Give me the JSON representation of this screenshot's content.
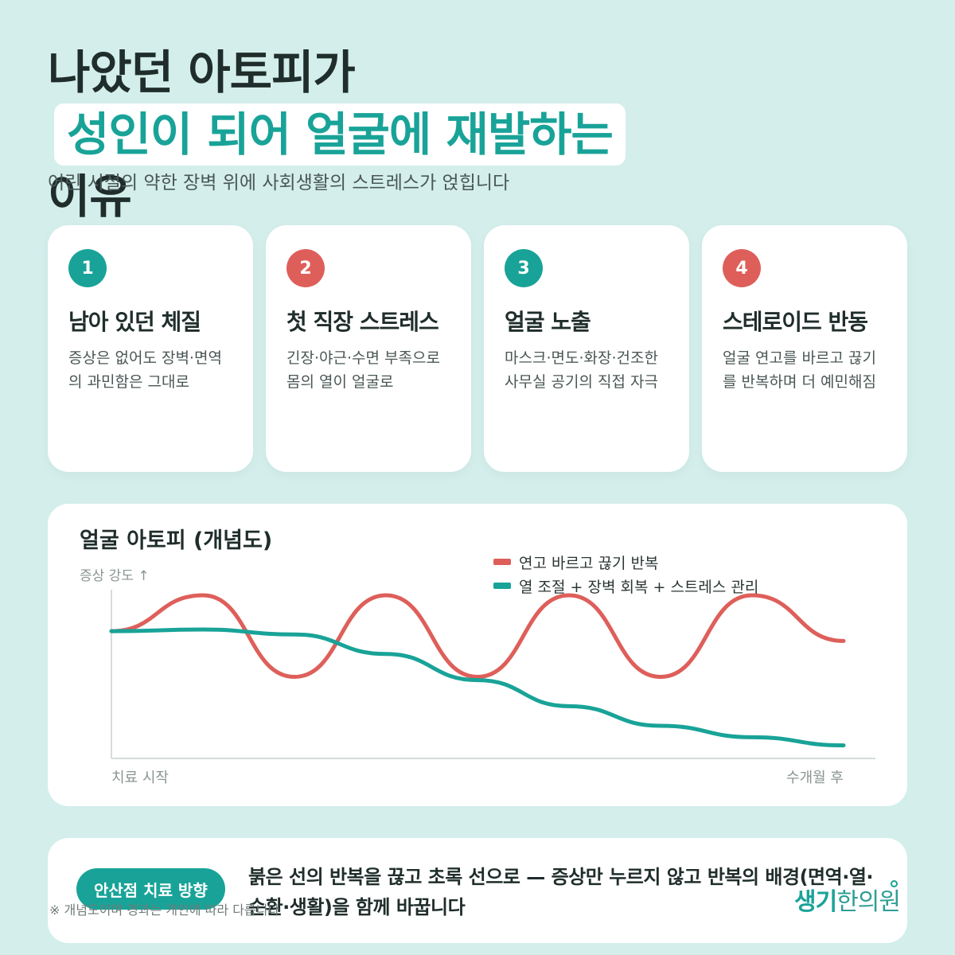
{
  "header": {
    "title_part1": "나았던 아토피가",
    "title_highlight": "성인이 되어 얼굴에 재발하는",
    "title_part2": "이유",
    "subtitle": "어린 시절의 약한 장벽 위에 사회생활의 스트레스가 얹힙니다"
  },
  "cards": [
    {
      "num": "1",
      "title": "남아 있던 체질",
      "body": "증상은 없어도 장벽·면역의 과민함은 그대로",
      "color": "#19a398"
    },
    {
      "num": "2",
      "title": "첫 직장 스트레스",
      "body": "긴장·야근·수면 부족으로 몸의 열이 얼굴로",
      "color": "#de5f5a"
    },
    {
      "num": "3",
      "title": "얼굴 노출",
      "body": "마스크·면도·화장·건조한 사무실 공기의 직접 자극",
      "color": "#19a398"
    },
    {
      "num": "4",
      "title": "스테로이드 반동",
      "body": "얼굴 연고를 바르고 끊기를 반복하며 더 예민해짐",
      "color": "#de5f5a"
    }
  ],
  "chart": {
    "title": "얼굴 아토피 (개념도)",
    "ylabel": "증상 강도 ↑",
    "x_start": "치료 시작",
    "x_end": "수개월 후"
  },
  "chart_data": {
    "type": "line",
    "title": "얼굴 아토피 (개념도)",
    "ylabel": "증상 강도 ↑",
    "x_tick_labels": [
      "치료 시작",
      "수개월 후"
    ],
    "legend_position": "top-right",
    "grid": false,
    "series": [
      {
        "name": "연고 바르고 끊기 반복",
        "color": "#de5f5a",
        "pattern": "oscillating",
        "y": [
          0.78,
          1.0,
          0.5,
          1.0,
          0.5,
          1.0,
          0.5,
          1.0,
          0.72
        ]
      },
      {
        "name": "열 조절 + 장벽 회복 + 스트레스 관리",
        "color": "#19a398",
        "pattern": "declining",
        "y": [
          0.78,
          0.79,
          0.76,
          0.64,
          0.48,
          0.32,
          0.2,
          0.13,
          0.08
        ]
      }
    ]
  },
  "bottom": {
    "pill": "안산점 치료 방향",
    "text": "붉은 선의 반복을 끊고 초록 선으로 — 증상만 누르지 않고 반복의 배경(면역·열·순환·생활)을 함께 바꿉니다",
    "footnote": "※ 개념도이며 경과는 개인에 따라 다릅니다",
    "logo_a": "생기",
    "logo_b": "한의원"
  }
}
